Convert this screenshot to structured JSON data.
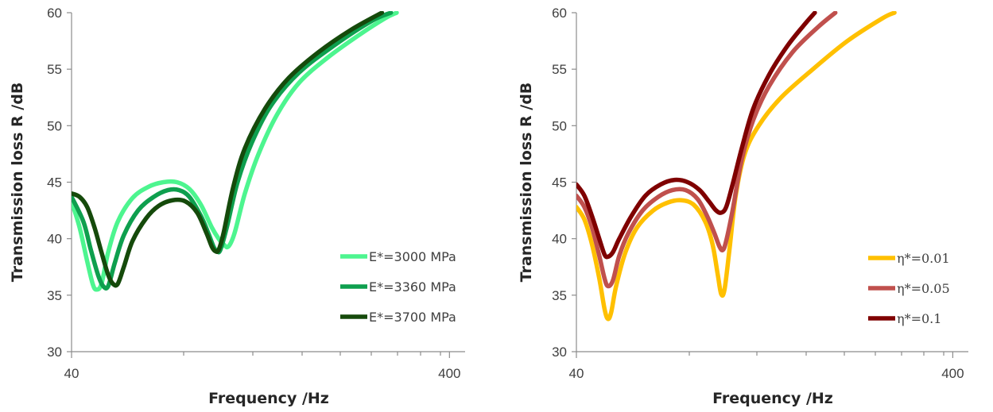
{
  "chart_data": [
    {
      "type": "line",
      "title": "",
      "xlabel": "Frequency /Hz",
      "ylabel": "Transmission loss R /dB",
      "x_scale": "log",
      "xlim": [
        40,
        440
      ],
      "ylim": [
        30,
        60
      ],
      "x_ticks": [
        40,
        400
      ],
      "y_ticks": [
        30,
        35,
        40,
        45,
        50,
        55,
        60
      ],
      "grid": false,
      "legend_position": "bottom-right",
      "series": [
        {
          "name": "E*=3000 MPa",
          "color": "#4DF58F",
          "points": [
            [
              40,
              43.3
            ],
            [
              42,
              41.0
            ],
            [
              44,
              38.0
            ],
            [
              45.5,
              36.0
            ],
            [
              46.5,
              35.5
            ],
            [
              48,
              36.0
            ],
            [
              50,
              38.8
            ],
            [
              53,
              41.5
            ],
            [
              58,
              43.6
            ],
            [
              64,
              44.6
            ],
            [
              70,
              45.0
            ],
            [
              76,
              45.0
            ],
            [
              82,
              44.4
            ],
            [
              88,
              43.0
            ],
            [
              94,
              41.0
            ],
            [
              98,
              40.0
            ],
            [
              101,
              39.5
            ],
            [
              104,
              39.3
            ],
            [
              108,
              40.5
            ],
            [
              115,
              44.0
            ],
            [
              125,
              47.5
            ],
            [
              140,
              51.0
            ],
            [
              160,
              53.8
            ],
            [
              190,
              56.0
            ],
            [
              230,
              58.0
            ],
            [
              270,
              59.5
            ],
            [
              290,
              60.0
            ]
          ]
        },
        {
          "name": "E*=3360 MPa",
          "color": "#0E9F4E",
          "points": [
            [
              40,
              43.7
            ],
            [
              43,
              41.5
            ],
            [
              45,
              39.0
            ],
            [
              47,
              36.8
            ],
            [
              48.5,
              35.8
            ],
            [
              50,
              35.8
            ],
            [
              52,
              37.8
            ],
            [
              55,
              40.3
            ],
            [
              60,
              42.5
            ],
            [
              66,
              43.7
            ],
            [
              72,
              44.3
            ],
            [
              77,
              44.3
            ],
            [
              82,
              43.7
            ],
            [
              88,
              42.0
            ],
            [
              92,
              40.5
            ],
            [
              95,
              39.3
            ],
            [
              97,
              38.9
            ],
            [
              99,
              39.0
            ],
            [
              103,
              41.0
            ],
            [
              110,
              45.0
            ],
            [
              120,
              48.5
            ],
            [
              135,
              51.8
            ],
            [
              160,
              54.7
            ],
            [
              200,
              57.2
            ],
            [
              250,
              59.3
            ],
            [
              280,
              60.0
            ]
          ]
        },
        {
          "name": "E*=3700 MPa",
          "color": "#154A0B",
          "points": [
            [
              40,
              44.0
            ],
            [
              42,
              43.7
            ],
            [
              44,
              42.8
            ],
            [
              46,
              41.0
            ],
            [
              48,
              38.8
            ],
            [
              50,
              36.8
            ],
            [
              51.5,
              36.0
            ],
            [
              53,
              36.0
            ],
            [
              55,
              37.5
            ],
            [
              58,
              39.8
            ],
            [
              63,
              41.8
            ],
            [
              68,
              42.9
            ],
            [
              74,
              43.4
            ],
            [
              80,
              43.3
            ],
            [
              86,
              42.3
            ],
            [
              91,
              40.5
            ],
            [
              94,
              39.3
            ],
            [
              96,
              38.9
            ],
            [
              98,
              39.0
            ],
            [
              101,
              40.5
            ],
            [
              107,
              44.5
            ],
            [
              115,
              48.0
            ],
            [
              130,
              51.5
            ],
            [
              150,
              54.2
            ],
            [
              180,
              56.5
            ],
            [
              220,
              58.5
            ],
            [
              265,
              60.0
            ]
          ]
        }
      ]
    },
    {
      "type": "line",
      "title": "",
      "xlabel": "Frequency /Hz",
      "ylabel": "Transmission loss R /dB",
      "x_scale": "log",
      "xlim": [
        40,
        440
      ],
      "ylim": [
        30,
        60
      ],
      "x_ticks": [
        40,
        400
      ],
      "y_ticks": [
        30,
        35,
        40,
        45,
        50,
        55,
        60
      ],
      "grid": false,
      "legend_position": "bottom-right",
      "series": [
        {
          "name": "η*=0.01",
          "color": "#FFC000",
          "points": [
            [
              40,
              42.8
            ],
            [
              42,
              41.7
            ],
            [
              44,
              39.5
            ],
            [
              46,
              36.5
            ],
            [
              47.5,
              33.8
            ],
            [
              48.5,
              32.9
            ],
            [
              49.5,
              33.5
            ],
            [
              51,
              35.8
            ],
            [
              54,
              38.8
            ],
            [
              58,
              41.0
            ],
            [
              64,
              42.5
            ],
            [
              70,
              43.2
            ],
            [
              76,
              43.4
            ],
            [
              82,
              43.0
            ],
            [
              88,
              41.5
            ],
            [
              92,
              39.5
            ],
            [
              95,
              36.8
            ],
            [
              97,
              35.1
            ],
            [
              99,
              35.5
            ],
            [
              102,
              39.0
            ],
            [
              106,
              43.8
            ],
            [
              112,
              47.5
            ],
            [
              122,
              50.0
            ],
            [
              140,
              52.5
            ],
            [
              170,
              55.0
            ],
            [
              210,
              57.5
            ],
            [
              260,
              59.5
            ],
            [
              280,
              60.0
            ]
          ]
        },
        {
          "name": "η*=0.05",
          "color": "#C0504D",
          "points": [
            [
              40,
              43.8
            ],
            [
              42,
              42.8
            ],
            [
              44,
              41.0
            ],
            [
              46,
              38.5
            ],
            [
              47.5,
              36.5
            ],
            [
              48.5,
              35.8
            ],
            [
              50,
              36.3
            ],
            [
              52,
              38.5
            ],
            [
              55,
              40.5
            ],
            [
              60,
              42.5
            ],
            [
              66,
              43.7
            ],
            [
              72,
              44.3
            ],
            [
              78,
              44.3
            ],
            [
              84,
              43.5
            ],
            [
              89,
              42.0
            ],
            [
              93,
              40.5
            ],
            [
              96,
              39.3
            ],
            [
              98,
              39.0
            ],
            [
              100,
              39.8
            ],
            [
              104,
              42.5
            ],
            [
              110,
              47.0
            ],
            [
              118,
              50.5
            ],
            [
              130,
              53.5
            ],
            [
              150,
              56.5
            ],
            [
              175,
              58.7
            ],
            [
              195,
              60.0
            ]
          ]
        },
        {
          "name": "η*=0.1",
          "color": "#7F0000",
          "points": [
            [
              40,
              44.8
            ],
            [
              42,
              43.8
            ],
            [
              44,
              42.0
            ],
            [
              46,
              40.0
            ],
            [
              47.5,
              38.6
            ],
            [
              48.5,
              38.4
            ],
            [
              50,
              38.8
            ],
            [
              52,
              40.0
            ],
            [
              56,
              42.0
            ],
            [
              61,
              43.8
            ],
            [
              67,
              44.8
            ],
            [
              73,
              45.2
            ],
            [
              79,
              45.0
            ],
            [
              85,
              44.3
            ],
            [
              90,
              43.3
            ],
            [
              94,
              42.5
            ],
            [
              97,
              42.3
            ],
            [
              100,
              42.8
            ],
            [
              104,
              44.8
            ],
            [
              110,
              48.0
            ],
            [
              118,
              51.5
            ],
            [
              130,
              54.5
            ],
            [
              145,
              57.0
            ],
            [
              160,
              58.8
            ],
            [
              172,
              60.0
            ]
          ]
        }
      ]
    }
  ]
}
